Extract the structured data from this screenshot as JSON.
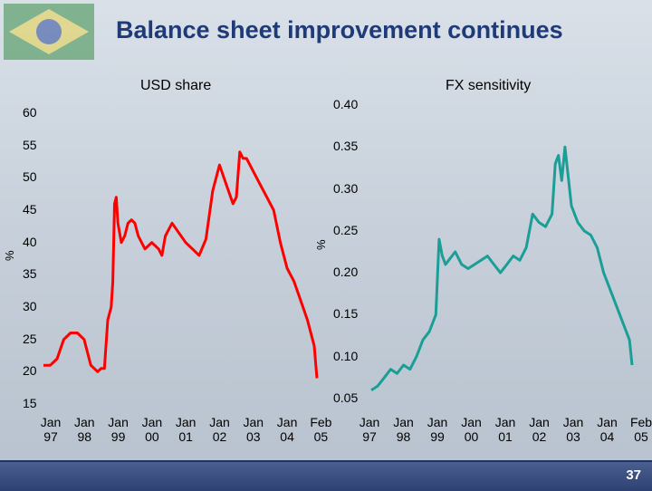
{
  "slide": {
    "title": "Balance sheet improvement continues",
    "page_number": "37"
  },
  "colors": {
    "title": "#1f3a78",
    "usd_line": "#ff0000",
    "fx_line": "#1a9e95",
    "footer": "#2d4272"
  },
  "chart_data": [
    {
      "type": "line",
      "title": "USD share",
      "ylabel": "%",
      "ylim": [
        15,
        60
      ],
      "yticks": [
        "60",
        "55",
        "50",
        "45",
        "40",
        "35",
        "30",
        "25",
        "20",
        "15"
      ],
      "xticks": [
        [
          "Jan",
          "97"
        ],
        [
          "Jan",
          "98"
        ],
        [
          "Jan",
          "99"
        ],
        [
          "Jan",
          "00"
        ],
        [
          "Jan",
          "01"
        ],
        [
          "Jan",
          "02"
        ],
        [
          "Jan",
          "03"
        ],
        [
          "Jan",
          "04"
        ],
        [
          "Feb",
          "05"
        ]
      ],
      "series": [
        {
          "color": "#ff0000",
          "x": [
            1997.0,
            1997.2,
            1997.4,
            1997.6,
            1997.8,
            1998.0,
            1998.2,
            1998.4,
            1998.6,
            1998.7,
            1998.8,
            1998.9,
            1999.0,
            1999.05,
            1999.1,
            1999.15,
            1999.2,
            1999.3,
            1999.4,
            1999.5,
            1999.6,
            1999.7,
            1999.8,
            1999.9,
            2000.0,
            2000.2,
            2000.4,
            2000.5,
            2000.6,
            2000.8,
            2001.0,
            2001.2,
            2001.4,
            2001.6,
            2001.8,
            2002.0,
            2002.2,
            2002.4,
            2002.6,
            2002.7,
            2002.8,
            2002.9,
            2003.0,
            2003.2,
            2003.4,
            2003.6,
            2003.8,
            2004.0,
            2004.2,
            2004.4,
            2004.6,
            2004.8,
            2005.0,
            2005.08
          ],
          "values": [
            21,
            21,
            22,
            25,
            26,
            26,
            25,
            21,
            20,
            20.5,
            20.5,
            28,
            30,
            34,
            46,
            47,
            43,
            40,
            41,
            43,
            43.5,
            43,
            41,
            40,
            39,
            40,
            39,
            38,
            41,
            43,
            41.5,
            40,
            39,
            38,
            40.5,
            48,
            52,
            49,
            46,
            47,
            54,
            53,
            53,
            51,
            49,
            47,
            45,
            40,
            36,
            34,
            31,
            28,
            24,
            19
          ]
        }
      ]
    },
    {
      "type": "line",
      "title": "FX sensitivity",
      "ylabel": "%",
      "ylim": [
        0.05,
        0.4
      ],
      "yticks": [
        "0.40",
        "0.35",
        "0.30",
        "0.25",
        "0.20",
        "0.15",
        "0.10",
        "0.05"
      ],
      "xticks": [
        [
          "Jan",
          "97"
        ],
        [
          "Jan",
          "98"
        ],
        [
          "Jan",
          "99"
        ],
        [
          "Jan",
          "00"
        ],
        [
          "Jan",
          "01"
        ],
        [
          "Jan",
          "02"
        ],
        [
          "Jan",
          "03"
        ],
        [
          "Jan",
          "04"
        ],
        [
          "Feb",
          "05"
        ]
      ],
      "series": [
        {
          "color": "#1a9e95",
          "x": [
            1997.0,
            1997.2,
            1997.4,
            1997.6,
            1997.8,
            1998.0,
            1998.2,
            1998.4,
            1998.6,
            1998.8,
            1999.0,
            1999.1,
            1999.2,
            1999.3,
            1999.4,
            1999.5,
            1999.6,
            1999.8,
            2000.0,
            2000.2,
            2000.4,
            2000.6,
            2000.8,
            2001.0,
            2001.2,
            2001.4,
            2001.6,
            2001.8,
            2002.0,
            2002.2,
            2002.4,
            2002.6,
            2002.7,
            2002.8,
            2002.9,
            2003.0,
            2003.2,
            2003.4,
            2003.6,
            2003.8,
            2004.0,
            2004.2,
            2004.4,
            2004.6,
            2004.8,
            2005.0,
            2005.08
          ],
          "values": [
            0.06,
            0.065,
            0.075,
            0.085,
            0.08,
            0.09,
            0.085,
            0.1,
            0.12,
            0.13,
            0.15,
            0.24,
            0.22,
            0.21,
            0.215,
            0.22,
            0.225,
            0.21,
            0.205,
            0.21,
            0.215,
            0.22,
            0.21,
            0.2,
            0.21,
            0.22,
            0.215,
            0.23,
            0.27,
            0.26,
            0.255,
            0.27,
            0.33,
            0.34,
            0.31,
            0.35,
            0.28,
            0.26,
            0.25,
            0.245,
            0.23,
            0.2,
            0.18,
            0.16,
            0.14,
            0.12,
            0.09
          ]
        }
      ]
    }
  ]
}
